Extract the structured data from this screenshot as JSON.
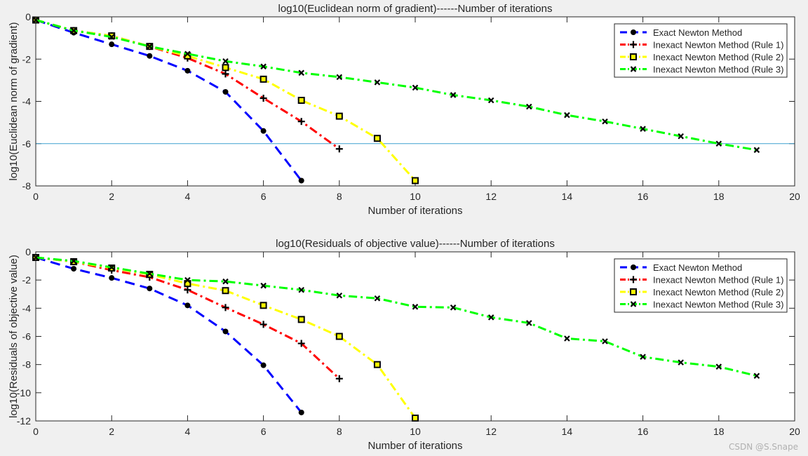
{
  "watermark": "CSDN @S.Snape",
  "colors": {
    "background": "#f0f0f0",
    "axes_bg": "#ffffff",
    "hline": "#3fa0d0",
    "text": "#262626"
  },
  "chart_data": [
    {
      "type": "line",
      "title": "log10(Euclidean norm of gradient)------Number of iterations",
      "xlabel": "Number of iterations",
      "ylabel": "log10(Euclidean norm of gradient)",
      "xlim": [
        0,
        20
      ],
      "ylim": [
        -8,
        0
      ],
      "xticks": [
        0,
        2,
        4,
        6,
        8,
        10,
        12,
        14,
        16,
        18,
        20
      ],
      "yticks": [
        0,
        -2,
        -4,
        -6,
        -8
      ],
      "hline": -6,
      "legend_position": "top-right",
      "series": [
        {
          "name": "Exact Newton Method",
          "color": "#0000ff",
          "dash": "dashed",
          "marker": "circle",
          "x": [
            0,
            1,
            2,
            3,
            4,
            5,
            6,
            7
          ],
          "y": [
            -0.15,
            -0.75,
            -1.3,
            -1.85,
            -2.55,
            -3.55,
            -5.4,
            -7.75
          ]
        },
        {
          "name": "Inexact Newton Method (Rule 1)",
          "color": "#ff0000",
          "dash": "dashdot",
          "marker": "plus",
          "x": [
            0,
            1,
            2,
            3,
            4,
            5,
            6,
            7,
            8
          ],
          "y": [
            -0.15,
            -0.65,
            -0.9,
            -1.4,
            -1.95,
            -2.7,
            -3.85,
            -4.95,
            -6.25
          ]
        },
        {
          "name": "Inexact Newton Method (Rule 2)",
          "color": "#ffff00",
          "dash": "dashdot",
          "marker": "square",
          "x": [
            0,
            1,
            2,
            3,
            4,
            5,
            6,
            7,
            8,
            9,
            10
          ],
          "y": [
            -0.15,
            -0.65,
            -0.9,
            -1.4,
            -1.85,
            -2.4,
            -2.95,
            -3.95,
            -4.7,
            -5.75,
            -7.75
          ]
        },
        {
          "name": "Inexact Newton Method (Rule 3)",
          "color": "#00ff00",
          "dash": "dashdot",
          "marker": "x",
          "x": [
            0,
            1,
            2,
            3,
            4,
            5,
            6,
            7,
            8,
            9,
            10,
            11,
            12,
            13,
            14,
            15,
            16,
            17,
            18,
            19
          ],
          "y": [
            -0.15,
            -0.65,
            -0.95,
            -1.4,
            -1.75,
            -2.1,
            -2.35,
            -2.65,
            -2.85,
            -3.1,
            -3.35,
            -3.7,
            -3.95,
            -4.25,
            -4.65,
            -4.95,
            -5.3,
            -5.65,
            -6.0,
            -6.3
          ]
        }
      ]
    },
    {
      "type": "line",
      "title": "log10(Residuals of objective value)------Number of iterations",
      "xlabel": "Number of iterations",
      "ylabel": "log10(Residuals of objective value)",
      "xlim": [
        0,
        20
      ],
      "ylim": [
        -12,
        0
      ],
      "xticks": [
        0,
        2,
        4,
        6,
        8,
        10,
        12,
        14,
        16,
        18,
        20
      ],
      "yticks": [
        0,
        -2,
        -4,
        -6,
        -8,
        -10,
        -12
      ],
      "legend_position": "top-right",
      "series": [
        {
          "name": "Exact Newton Method",
          "color": "#0000ff",
          "dash": "dashed",
          "marker": "circle",
          "x": [
            0,
            1,
            2,
            3,
            4,
            5,
            6,
            7
          ],
          "y": [
            -0.4,
            -1.2,
            -1.85,
            -2.6,
            -3.8,
            -5.65,
            -8.05,
            -11.4
          ]
        },
        {
          "name": "Inexact Newton Method (Rule 1)",
          "color": "#ff0000",
          "dash": "dashdot",
          "marker": "plus",
          "x": [
            0,
            1,
            2,
            3,
            4,
            5,
            6,
            7,
            8
          ],
          "y": [
            -0.4,
            -0.7,
            -1.3,
            -1.8,
            -2.7,
            -3.95,
            -5.15,
            -6.5,
            -9.0
          ]
        },
        {
          "name": "Inexact Newton Method (Rule 2)",
          "color": "#ffff00",
          "dash": "dashdot",
          "marker": "square",
          "x": [
            0,
            1,
            2,
            3,
            4,
            5,
            6,
            7,
            8,
            9,
            10
          ],
          "y": [
            -0.4,
            -0.7,
            -1.15,
            -1.6,
            -2.25,
            -2.75,
            -3.8,
            -4.8,
            -6.0,
            -8.0,
            -11.8
          ]
        },
        {
          "name": "Inexact Newton Method (Rule 3)",
          "color": "#00ff00",
          "dash": "dashdot",
          "marker": "x",
          "x": [
            0,
            1,
            2,
            3,
            4,
            5,
            6,
            7,
            8,
            9,
            10,
            11,
            12,
            13,
            14,
            15,
            16,
            17,
            18,
            19
          ],
          "y": [
            -0.4,
            -0.65,
            -1.1,
            -1.55,
            -2.0,
            -2.1,
            -2.4,
            -2.7,
            -3.1,
            -3.3,
            -3.9,
            -3.95,
            -4.65,
            -5.05,
            -6.15,
            -6.35,
            -7.45,
            -7.85,
            -8.15,
            -8.8
          ]
        }
      ]
    }
  ]
}
